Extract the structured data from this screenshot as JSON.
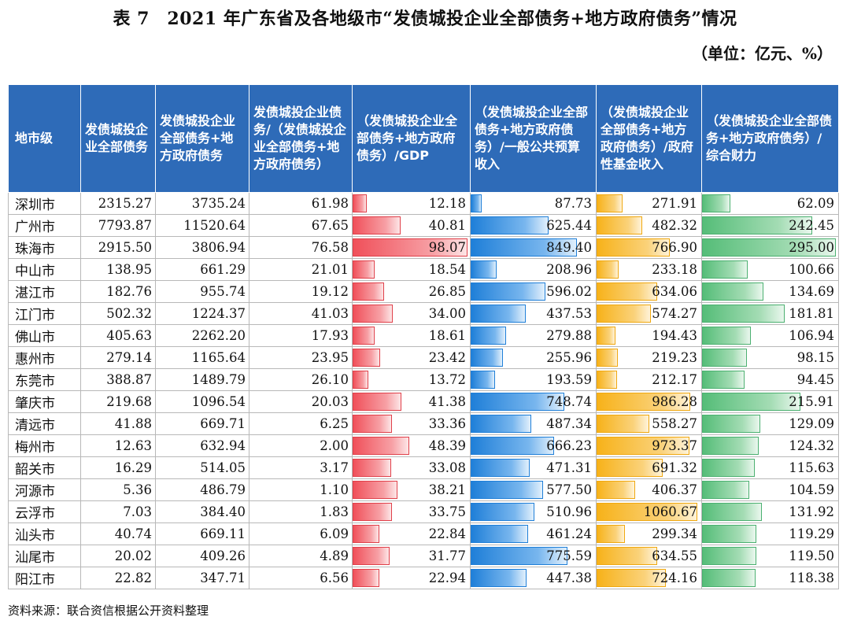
{
  "title": "表 7　2021 年广东省及各地级市“发债城投企业全部债务+地方政府债务”情况",
  "unit": "（单位：亿元、%）",
  "headers": [
    "地市级",
    "发债城投企业全部债务",
    "发债城投企业全部债务+地方政府债务",
    "发债城投企业债务/（发债城投企业全部债务+地方政府债务）",
    "（发债城投企业全部债务+地方政府债务）/GDP",
    "（发债城投企业全部债务+地方政府债务）/一般公共预算收入",
    "（发债城投企业全部债务+地方政府债务）/政府性基金收入",
    "（发债城投企业全部债务+地方政府债务）/综合财力"
  ],
  "bar_colors": {
    "gdp": "#f0505a",
    "budget": "#1f7fd8",
    "fund": "#f7b21a",
    "fiscal": "#55bd78"
  },
  "bar_max": {
    "gdp": 100,
    "budget": 1000,
    "fund": 1100,
    "fiscal": 300
  },
  "rows": [
    {
      "city": "深圳市",
      "debt": "2315.27",
      "total": "3735.24",
      "ratio": "61.98",
      "gdp": "12.18",
      "budget": "87.73",
      "fund": "271.91",
      "fiscal": "62.09"
    },
    {
      "city": "广州市",
      "debt": "7793.87",
      "total": "11520.64",
      "ratio": "67.65",
      "gdp": "40.81",
      "budget": "625.44",
      "fund": "482.32",
      "fiscal": "242.45"
    },
    {
      "city": "珠海市",
      "debt": "2915.50",
      "total": "3806.94",
      "ratio": "76.58",
      "gdp": "98.07",
      "budget": "849.40",
      "fund": "766.90",
      "fiscal": "295.00"
    },
    {
      "city": "中山市",
      "debt": "138.95",
      "total": "661.29",
      "ratio": "21.01",
      "gdp": "18.54",
      "budget": "208.96",
      "fund": "233.18",
      "fiscal": "100.66"
    },
    {
      "city": "湛江市",
      "debt": "182.76",
      "total": "955.74",
      "ratio": "19.12",
      "gdp": "26.85",
      "budget": "596.02",
      "fund": "634.06",
      "fiscal": "134.69"
    },
    {
      "city": "江门市",
      "debt": "502.32",
      "total": "1224.37",
      "ratio": "41.03",
      "gdp": "34.00",
      "budget": "437.53",
      "fund": "574.27",
      "fiscal": "181.81"
    },
    {
      "city": "佛山市",
      "debt": "405.63",
      "total": "2262.20",
      "ratio": "17.93",
      "gdp": "18.61",
      "budget": "279.88",
      "fund": "194.43",
      "fiscal": "106.94"
    },
    {
      "city": "惠州市",
      "debt": "279.14",
      "total": "1165.64",
      "ratio": "23.95",
      "gdp": "23.42",
      "budget": "255.96",
      "fund": "219.23",
      "fiscal": "98.15"
    },
    {
      "city": "东莞市",
      "debt": "388.87",
      "total": "1489.79",
      "ratio": "26.10",
      "gdp": "13.72",
      "budget": "193.59",
      "fund": "212.17",
      "fiscal": "94.45"
    },
    {
      "city": "肇庆市",
      "debt": "219.68",
      "total": "1096.54",
      "ratio": "20.03",
      "gdp": "41.38",
      "budget": "748.74",
      "fund": "986.28",
      "fiscal": "215.91"
    },
    {
      "city": "清远市",
      "debt": "41.88",
      "total": "669.71",
      "ratio": "6.25",
      "gdp": "33.36",
      "budget": "487.34",
      "fund": "558.27",
      "fiscal": "129.09"
    },
    {
      "city": "梅州市",
      "debt": "12.63",
      "total": "632.94",
      "ratio": "2.00",
      "gdp": "48.39",
      "budget": "666.23",
      "fund": "973.37",
      "fiscal": "124.32"
    },
    {
      "city": "韶关市",
      "debt": "16.29",
      "total": "514.05",
      "ratio": "3.17",
      "gdp": "33.08",
      "budget": "471.31",
      "fund": "691.32",
      "fiscal": "115.63"
    },
    {
      "city": "河源市",
      "debt": "5.36",
      "total": "486.79",
      "ratio": "1.10",
      "gdp": "38.21",
      "budget": "577.50",
      "fund": "406.37",
      "fiscal": "104.59"
    },
    {
      "city": "云浮市",
      "debt": "7.03",
      "total": "384.40",
      "ratio": "1.83",
      "gdp": "33.75",
      "budget": "510.96",
      "fund": "1060.67",
      "fiscal": "131.92"
    },
    {
      "city": "汕头市",
      "debt": "40.74",
      "total": "669.11",
      "ratio": "6.09",
      "gdp": "22.84",
      "budget": "461.24",
      "fund": "299.34",
      "fiscal": "119.29"
    },
    {
      "city": "汕尾市",
      "debt": "20.02",
      "total": "409.26",
      "ratio": "4.89",
      "gdp": "31.77",
      "budget": "775.59",
      "fund": "634.55",
      "fiscal": "119.50"
    },
    {
      "city": "阳江市",
      "debt": "22.82",
      "total": "347.71",
      "ratio": "6.56",
      "gdp": "22.94",
      "budget": "447.38",
      "fund": "724.16",
      "fiscal": "118.38"
    }
  ],
  "source": "资料来源：联合资信根据公开资料整理"
}
